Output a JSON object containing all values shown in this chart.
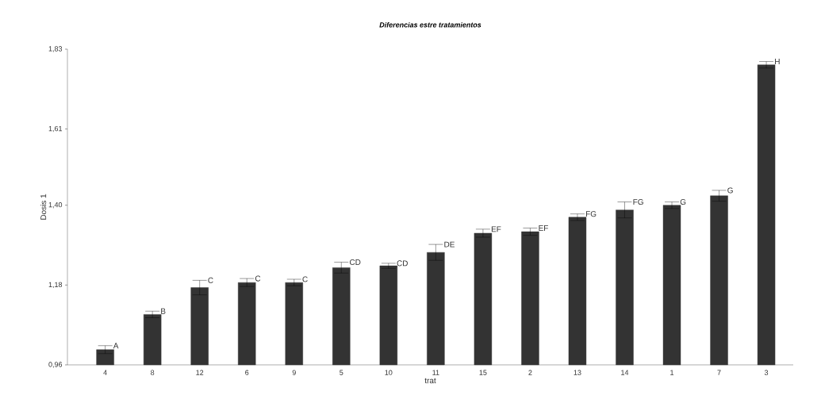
{
  "chart_data": {
    "type": "bar",
    "title": "Diferencias estre tratamientos",
    "xlabel": "trat",
    "ylabel": "Dosis 1",
    "categories": [
      "4",
      "8",
      "12",
      "6",
      "9",
      "5",
      "10",
      "11",
      "15",
      "2",
      "13",
      "14",
      "1",
      "7",
      "3"
    ],
    "values": [
      1.002,
      1.099,
      1.173,
      1.187,
      1.187,
      1.228,
      1.233,
      1.27,
      1.323,
      1.327,
      1.367,
      1.387,
      1.4,
      1.426,
      1.787
    ],
    "errors": [
      0.011,
      0.009,
      0.02,
      0.011,
      0.009,
      0.015,
      0.007,
      0.022,
      0.011,
      0.01,
      0.009,
      0.022,
      0.009,
      0.015,
      0.009
    ],
    "color": "#333333",
    "ylim": [
      0.96,
      1.83
    ],
    "yticks": [
      {
        "value": 0.96,
        "label": "0,96"
      },
      {
        "value": 1.18,
        "label": "1,18"
      },
      {
        "value": 1.4,
        "label": "1,40"
      },
      {
        "value": 1.61,
        "label": "1,61"
      },
      {
        "value": 1.83,
        "label": "1,83"
      }
    ],
    "annotations": [
      {
        "text": "A",
        "x": "4",
        "y": 1.013
      },
      {
        "text": "B",
        "x": "8",
        "y": 1.108
      },
      {
        "text": "C",
        "x": "12",
        "y": 1.193
      },
      {
        "text": "C",
        "x": "6",
        "y": 1.198
      },
      {
        "text": "C",
        "x": "9",
        "y": 1.196
      },
      {
        "text": "CD",
        "x": "5",
        "y": 1.243
      },
      {
        "text": "CD",
        "x": "10",
        "y": 1.24
      },
      {
        "text": "DE",
        "x": "11",
        "y": 1.292
      },
      {
        "text": "EF",
        "x": "15",
        "y": 1.334
      },
      {
        "text": "EF",
        "x": "2",
        "y": 1.337
      },
      {
        "text": "FG",
        "x": "13",
        "y": 1.376
      },
      {
        "text": "FG",
        "x": "14",
        "y": 1.409
      },
      {
        "text": "G",
        "x": "1",
        "y": 1.409
      },
      {
        "text": "G",
        "x": "7",
        "y": 1.441
      },
      {
        "text": "H",
        "x": "3",
        "y": 1.796
      }
    ],
    "grid": false
  }
}
